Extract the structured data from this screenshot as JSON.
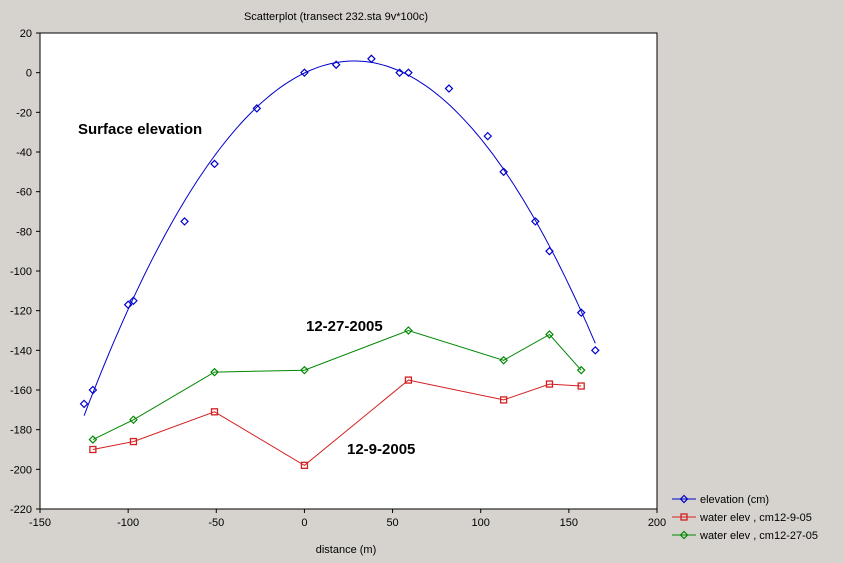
{
  "chart_data": {
    "type": "scatter",
    "title": "Scatterplot (transect 232.sta 9v*100c)",
    "xlabel": "distance (m)",
    "ylabel": "",
    "xlim": [
      -150,
      200
    ],
    "ylim": [
      -220,
      20
    ],
    "xticks": [
      "-150",
      "-100",
      "-50",
      "0",
      "50",
      "100",
      "150",
      "200"
    ],
    "yticks": [
      "20",
      "0",
      "-20",
      "-40",
      "-60",
      "-80",
      "-100",
      "-120",
      "-140",
      "-160",
      "-180",
      "-200",
      "-220"
    ],
    "legend_position": "bottom-right",
    "series": [
      {
        "name": "elevation (cm)",
        "color": "#0000cc",
        "marker": "diamond",
        "fit": "quadratic",
        "x": [
          -125,
          -120,
          -100,
          -97,
          -68,
          -51,
          -27,
          0,
          18,
          38,
          54,
          59,
          82,
          104,
          113,
          131,
          139,
          157,
          165
        ],
        "y": [
          -167,
          -160,
          -117,
          -115,
          -75,
          -46,
          -18,
          0,
          4,
          7,
          0,
          0,
          -8,
          -32,
          -50,
          -75,
          -90,
          -121,
          -140
        ]
      },
      {
        "name": "water elev , cm12-9-05",
        "color": "#d42020",
        "marker": "square",
        "fit": "line",
        "x": [
          -120,
          -97,
          -51,
          0,
          59,
          113,
          139,
          157
        ],
        "y": [
          -190,
          -186,
          -171,
          -198,
          -155,
          -165,
          -157,
          -158
        ]
      },
      {
        "name": "water elev , cm12-27-05",
        "color": "#008800",
        "marker": "diamond",
        "fit": "line",
        "x": [
          -120,
          -97,
          -51,
          0,
          59,
          113,
          139,
          157
        ],
        "y": [
          -185,
          -175,
          -151,
          -150,
          -130,
          -145,
          -132,
          -150
        ]
      }
    ],
    "annotations": [
      {
        "text": "Surface elevation"
      },
      {
        "text": "12-27-2005"
      },
      {
        "text": "12-9-2005"
      }
    ]
  }
}
